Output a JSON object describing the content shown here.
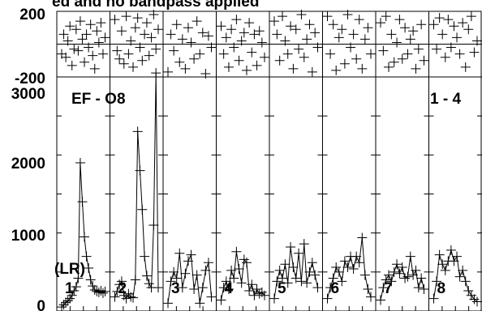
{
  "title_fragment": "ed and no bandpass applied",
  "top_panel": {
    "tick_labels": [
      "200",
      "-200"
    ],
    "ylim": [
      -200,
      200
    ]
  },
  "main_panel": {
    "tick_labels": [
      "3000",
      "2000",
      "1000",
      "0"
    ],
    "ylim": [
      0,
      3000
    ]
  },
  "annotations": {
    "left": "EF - O8",
    "right": "1 - 4",
    "lr_label": "(LR)"
  },
  "subplot_labels": [
    "1",
    "2",
    "3",
    "4",
    "5",
    "6",
    "7",
    "8"
  ],
  "chart_data": {
    "type": "line",
    "ylim": [
      0,
      3000
    ],
    "residual_ylim": [
      -200,
      200
    ],
    "n_subplots": 8,
    "series": [
      {
        "residuals": [
          -60,
          60,
          -80,
          20,
          110,
          -130,
          -30,
          90,
          -40,
          140,
          30,
          -110,
          60,
          -20,
          120,
          -70,
          -150,
          80,
          10,
          130,
          -60,
          40
        ]
      },
      {
        "residuals": [
          150,
          -40,
          -90,
          80,
          -120,
          170,
          -60,
          20,
          -140,
          100,
          160,
          -20,
          -100,
          60,
          130,
          -70,
          40,
          180,
          -30,
          90
        ]
      },
      {
        "residuals": [
          -170,
          60,
          -40,
          120,
          -110,
          30,
          -150,
          100,
          10,
          -90,
          140,
          -60,
          70,
          -180,
          50,
          -20
        ]
      },
      {
        "residuals": [
          110,
          -60,
          40,
          -140,
          90,
          -20,
          150,
          -100,
          20,
          70,
          -160,
          130,
          -50,
          60,
          -130,
          80,
          10,
          -80
        ]
      },
      {
        "residuals": [
          140,
          60,
          -100,
          170,
          20,
          -60,
          110,
          -150,
          90,
          -30,
          180,
          -80,
          30,
          120,
          -170,
          70,
          -20
        ]
      },
      {
        "residuals": [
          170,
          -60,
          120,
          -160,
          40,
          90,
          -120,
          180,
          -20,
          60,
          -90,
          150,
          -150,
          30,
          100,
          -60
        ]
      },
      {
        "residuals": [
          130,
          -40,
          170,
          -140,
          60,
          -110,
          10,
          150,
          -90,
          100,
          -60,
          30,
          80,
          -150,
          -30,
          120,
          -100
        ]
      },
      {
        "residuals": [
          120,
          -30,
          160,
          60,
          -80,
          150,
          -20,
          110,
          40,
          -60,
          130,
          -140,
          90,
          170,
          -50,
          20
        ]
      }
    ],
    "values_by_subplot": [
      [
        50,
        80,
        110,
        130,
        160,
        200,
        260,
        310,
        420,
        1900,
        1400,
        950,
        700,
        550,
        400,
        320,
        270,
        250,
        240,
        260,
        230,
        250
      ],
      [
        180,
        250,
        340,
        380,
        200,
        160,
        220,
        180,
        170,
        400,
        2300,
        1800,
        1300,
        700,
        450,
        350,
        300,
        1100,
        3050,
        300
      ],
      [
        100,
        380,
        500,
        420,
        740,
        300,
        480,
        640,
        720,
        280,
        460,
        100,
        300,
        520,
        620,
        180
      ],
      [
        140,
        300,
        380,
        280,
        520,
        420,
        760,
        540,
        360,
        660,
        620,
        260,
        340,
        200,
        280,
        220,
        240,
        200
      ],
      [
        160,
        380,
        520,
        420,
        600,
        360,
        820,
        560,
        420,
        740,
        380,
        860,
        360,
        500,
        620,
        460,
        300
      ],
      [
        160,
        300,
        420,
        560,
        500,
        380,
        640,
        560,
        700,
        540,
        700,
        620,
        940,
        460,
        280,
        180
      ],
      [
        140,
        300,
        400,
        460,
        380,
        500,
        600,
        480,
        560,
        420,
        440,
        700,
        460,
        520,
        300,
        420,
        280
      ],
      [
        160,
        380,
        720,
        600,
        520,
        640,
        780,
        640,
        700,
        440,
        520,
        380,
        260,
        200,
        150,
        120
      ]
    ]
  }
}
